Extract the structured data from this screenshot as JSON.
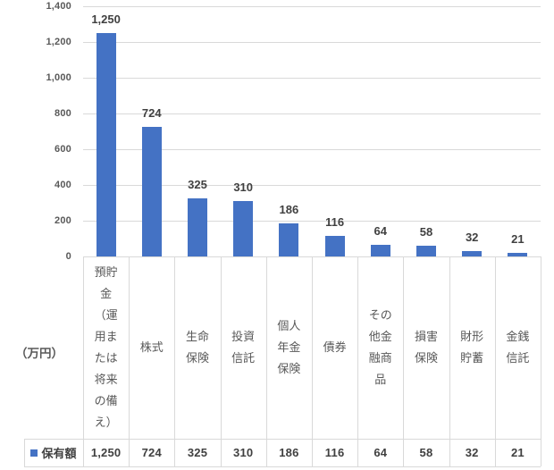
{
  "chart_data": {
    "type": "bar",
    "title": "",
    "ylabel": "（万円）",
    "categories": [
      "預貯金（運用または将来の備え）",
      "株式",
      "生命保険",
      "投資信託",
      "個人年金保険",
      "債券",
      "その他金融商品",
      "損害保険",
      "財形貯蓄",
      "金銭信託"
    ],
    "categories_display": [
      "預貯\n金\n（運\n用ま\nたは\n将来\nの備\nえ）",
      "株式",
      "生命\n保険",
      "投資\n信託",
      "個人\n年金\n保険",
      "債券",
      "その\n他金\n融商\n品",
      "損害\n保険",
      "財形\n貯蓄",
      "金銭\n信託"
    ],
    "series": [
      {
        "name": "保有額",
        "values": [
          1250,
          724,
          325,
          310,
          186,
          116,
          64,
          58,
          32,
          21
        ]
      }
    ],
    "data_labels": [
      "1,250",
      "724",
      "325",
      "310",
      "186",
      "116",
      "64",
      "58",
      "32",
      "21"
    ],
    "ylim": [
      0,
      1400
    ],
    "ytick_step": 200,
    "yticks": [
      "0",
      "200",
      "400",
      "600",
      "800",
      "1,000",
      "1,200",
      "1,400"
    ],
    "grid": true,
    "legend_position": "data-table-left",
    "colors": {
      "bar": "#4472C4",
      "gridline": "#D9D9D9",
      "border": "#D9D9D9",
      "tick_text": "#595959",
      "category_text": "#595959",
      "label_text": "#404040",
      "unit_text": "#595959"
    }
  },
  "data_table": {
    "legend_key_color": "#4472C4",
    "row_label": "保有額",
    "values": [
      "1,250",
      "724",
      "325",
      "310",
      "186",
      "116",
      "64",
      "58",
      "32",
      "21"
    ]
  }
}
